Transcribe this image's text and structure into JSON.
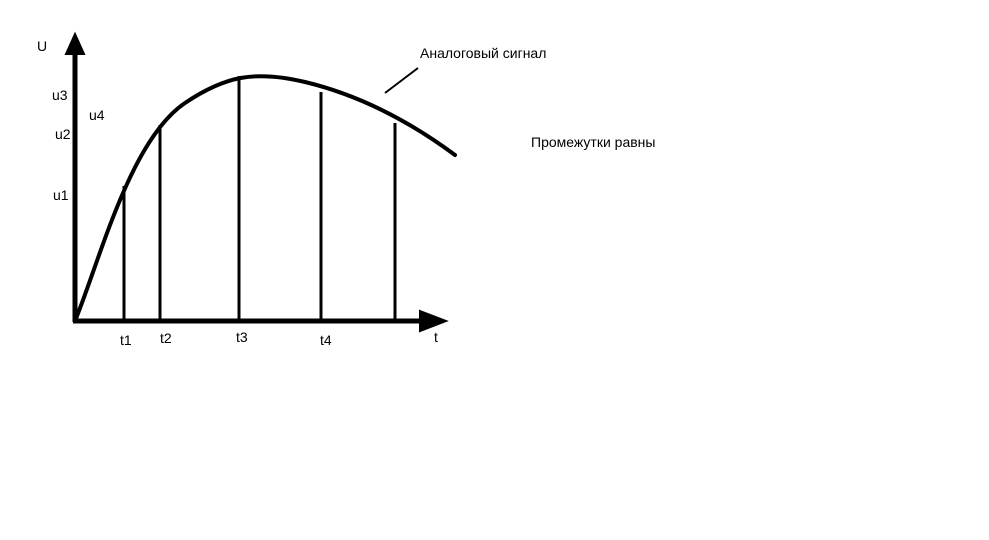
{
  "axes": {
    "y_label": "U",
    "x_label": "t"
  },
  "u_labels": [
    "u1",
    "u2",
    "u3",
    "u4"
  ],
  "t_labels": [
    "t1",
    "t2",
    "t3",
    "t4"
  ],
  "annotations": {
    "signal_label": "Аналоговый сигнал",
    "note": "Промежутки равны"
  },
  "colors": {
    "stroke": "#000000",
    "background": "#ffffff"
  }
}
